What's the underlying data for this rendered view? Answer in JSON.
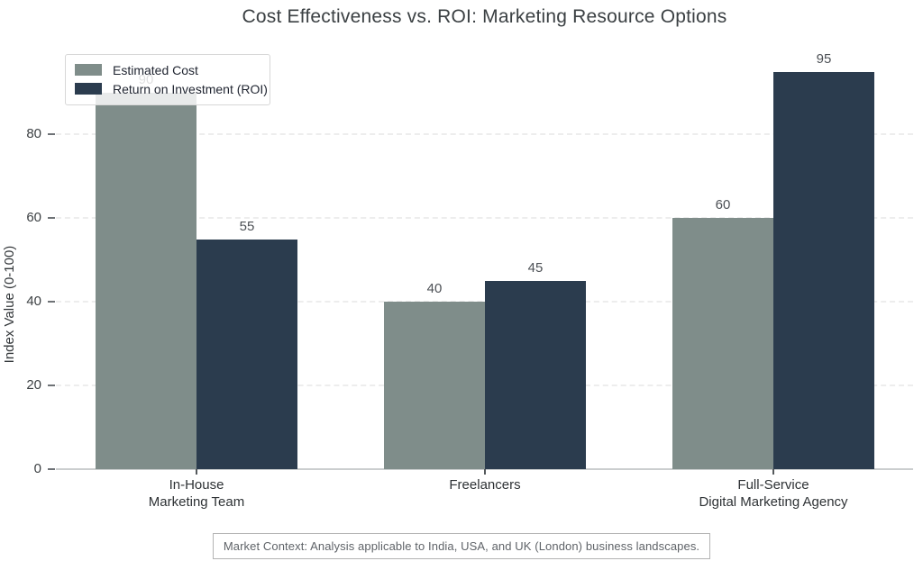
{
  "title": "Cost Effectiveness vs. ROI: Marketing Resource Options",
  "caption": "Market Context: Analysis applicable to India, USA, and UK (London) business landscapes.",
  "chart_data": {
    "type": "bar",
    "title": "Cost Effectiveness vs. ROI: Marketing Resource Options",
    "categories": [
      "In-House Marketing Team",
      "Freelancers",
      "Full-Service Digital Marketing Agency"
    ],
    "category_lines": [
      [
        "In-House",
        "Marketing Team"
      ],
      [
        "Freelancers"
      ],
      [
        "Full-Service",
        "Digital Marketing Agency"
      ]
    ],
    "series": [
      {
        "name": "Estimated Cost",
        "color": "#7f8d8a",
        "values": [
          90,
          40,
          60
        ]
      },
      {
        "name": "Return on Investment (ROI)",
        "color": "#2b3c4e",
        "values": [
          55,
          45,
          95
        ]
      }
    ],
    "xlabel": "",
    "ylabel": "Index Value (0-100)",
    "yticks": [
      0,
      20,
      40,
      60,
      80
    ],
    "ylim": [
      0,
      100
    ],
    "grid": "horizontal-dashed",
    "gridline_color": "#ededed",
    "axis_line_color": "#cbcecf",
    "legend_position": "upper-left",
    "value_labels": true
  }
}
